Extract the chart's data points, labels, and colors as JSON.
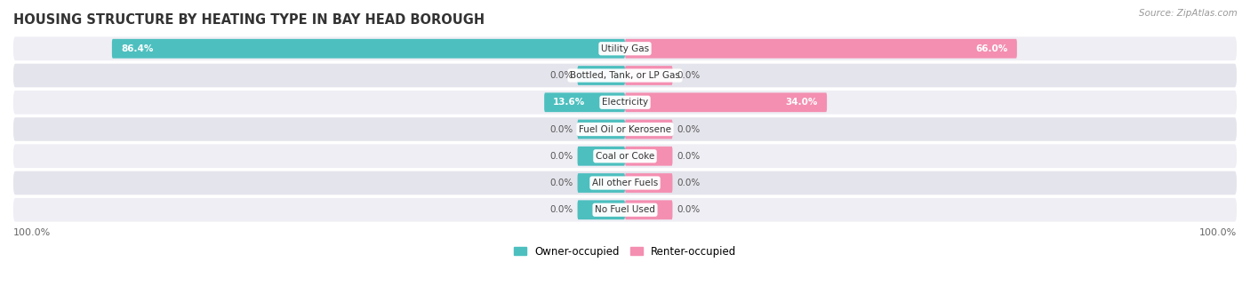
{
  "title": "HOUSING STRUCTURE BY HEATING TYPE IN BAY HEAD BOROUGH",
  "source": "Source: ZipAtlas.com",
  "categories": [
    "Utility Gas",
    "Bottled, Tank, or LP Gas",
    "Electricity",
    "Fuel Oil or Kerosene",
    "Coal or Coke",
    "All other Fuels",
    "No Fuel Used"
  ],
  "owner_values": [
    86.4,
    0.0,
    13.6,
    0.0,
    0.0,
    0.0,
    0.0
  ],
  "renter_values": [
    66.0,
    0.0,
    34.0,
    0.0,
    0.0,
    0.0,
    0.0
  ],
  "owner_color": "#4DBFBF",
  "renter_color": "#F48FB1",
  "owner_label": "Owner-occupied",
  "renter_label": "Renter-occupied",
  "max_value": 100.0,
  "stub_value": 8.0,
  "axis_label_left": "100.0%",
  "axis_label_right": "100.0%",
  "title_fontsize": 10.5,
  "cat_fontsize": 7.5,
  "val_fontsize": 7.5,
  "source_fontsize": 7.5,
  "legend_fontsize": 8.5,
  "bg_color": "#f0f0f5",
  "row_bg": "#e8e8ee"
}
